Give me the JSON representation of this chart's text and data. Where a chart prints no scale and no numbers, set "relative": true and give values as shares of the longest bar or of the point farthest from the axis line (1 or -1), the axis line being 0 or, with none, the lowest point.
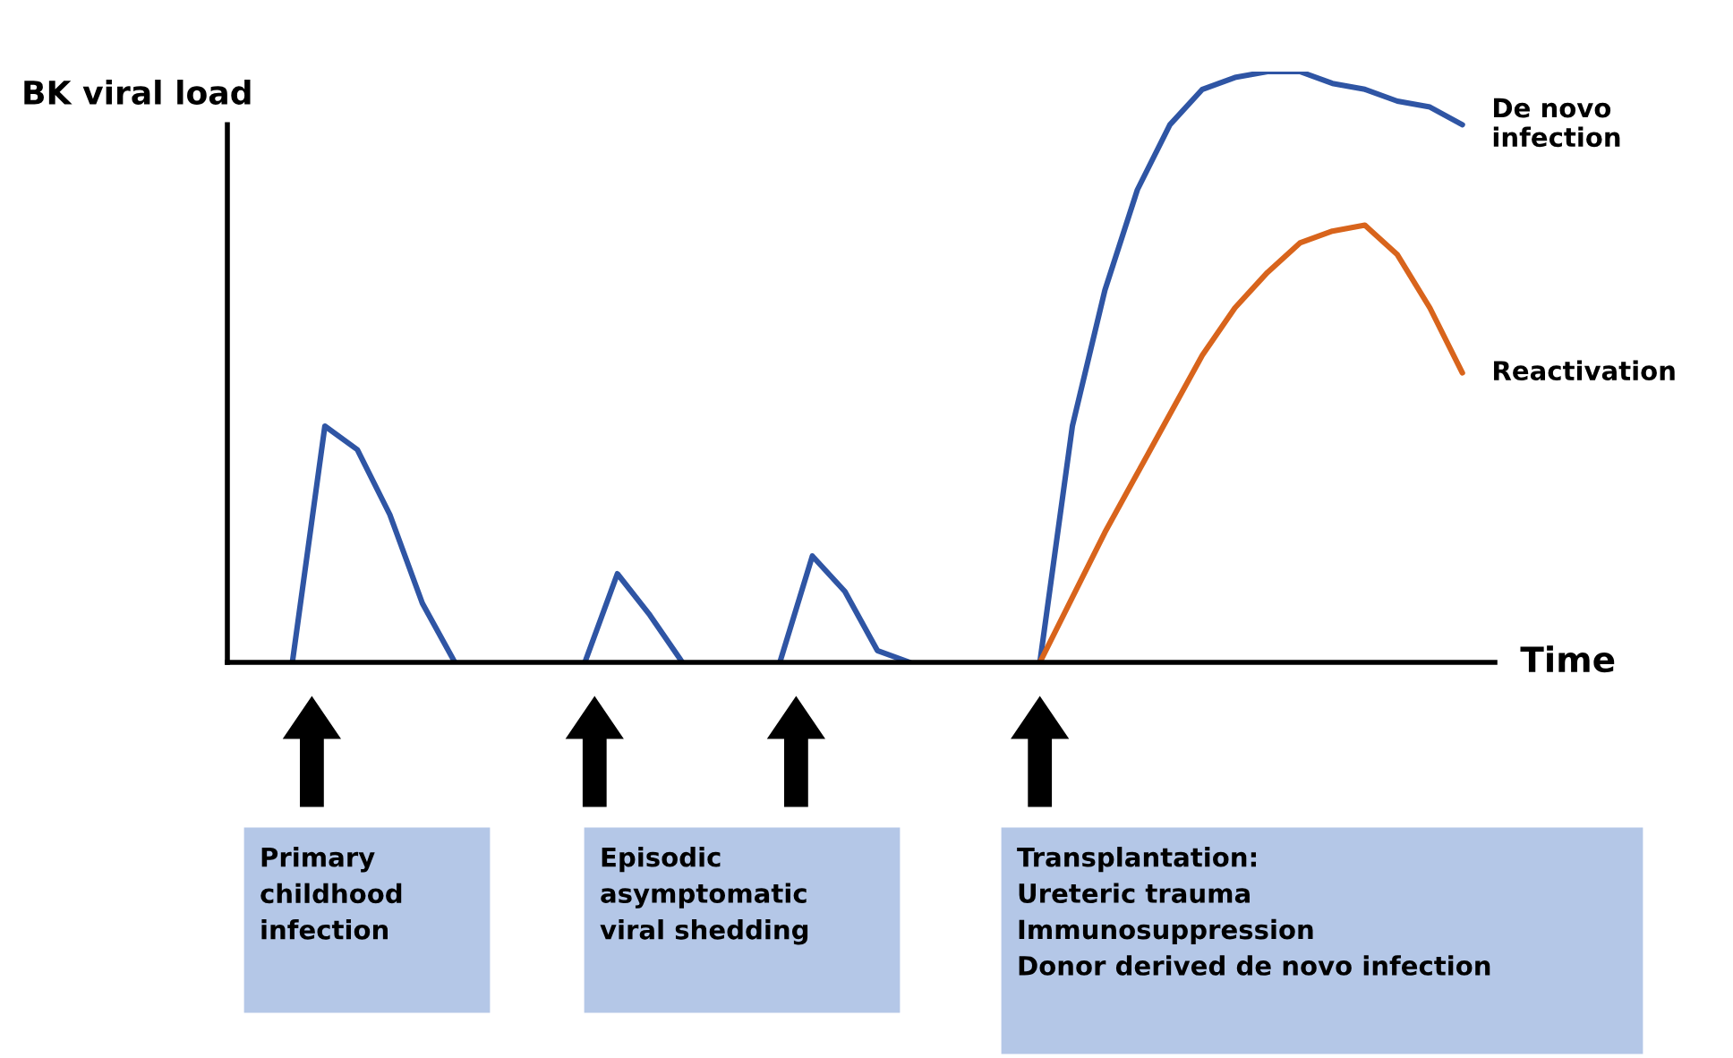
{
  "chart_data": {
    "type": "line",
    "relative": true,
    "ylabel": "BK viral load",
    "xlabel": "Time",
    "tick_labels": false,
    "categories": [
      null,
      null,
      null,
      null,
      null,
      null,
      null,
      null,
      null,
      null,
      null,
      null,
      null,
      null,
      null,
      null,
      null,
      null,
      null,
      null,
      null,
      null,
      null,
      null,
      null,
      null,
      null,
      null,
      null,
      null,
      null,
      null,
      null,
      null,
      null,
      null,
      null,
      null,
      null,
      null
    ],
    "series": [
      {
        "color": "#2f55a4",
        "values": [
          null,
          null,
          0,
          0.4,
          0.36,
          0.25,
          0.1,
          0,
          null,
          null,
          null,
          null,
          null,
          null,
          null,
          null,
          null,
          null,
          null,
          null,
          null,
          null,
          null,
          null,
          null,
          null,
          null,
          null,
          null,
          null,
          null,
          null,
          null,
          null,
          null,
          null,
          null,
          null,
          null,
          null
        ]
      },
      {
        "color": "#2f55a4",
        "values": [
          null,
          null,
          null,
          null,
          null,
          null,
          null,
          null,
          null,
          null,
          null,
          0,
          0.15,
          0.08,
          0,
          null,
          null,
          null,
          null,
          null,
          null,
          null,
          null,
          null,
          null,
          null,
          null,
          null,
          null,
          null,
          null,
          null,
          null,
          null,
          null,
          null,
          null,
          null,
          null,
          null
        ]
      },
      {
        "color": "#2f55a4",
        "values": [
          null,
          null,
          null,
          null,
          null,
          null,
          null,
          null,
          null,
          null,
          null,
          null,
          null,
          null,
          null,
          null,
          null,
          0,
          0.18,
          0.12,
          0.02,
          0,
          null,
          null,
          null,
          null,
          null,
          null,
          null,
          null,
          null,
          null,
          null,
          null,
          null,
          null,
          null,
          null,
          null,
          null
        ]
      },
      {
        "name": "De novo infection",
        "color": "#2f55a4",
        "values": [
          null,
          null,
          null,
          null,
          null,
          null,
          null,
          null,
          null,
          null,
          null,
          null,
          null,
          null,
          null,
          null,
          null,
          null,
          null,
          null,
          null,
          null,
          null,
          null,
          null,
          0,
          0.4,
          0.63,
          0.8,
          0.91,
          0.97,
          0.99,
          1.0,
          1.0,
          0.98,
          0.97,
          0.95,
          0.94,
          0.91,
          null
        ]
      },
      {
        "name": "Reactivation",
        "color": "#d8641c",
        "values": [
          null,
          null,
          null,
          null,
          null,
          null,
          null,
          null,
          null,
          null,
          null,
          null,
          null,
          null,
          null,
          null,
          null,
          null,
          null,
          null,
          null,
          null,
          null,
          null,
          null,
          0,
          0.11,
          0.22,
          0.32,
          0.42,
          0.52,
          0.6,
          0.66,
          0.71,
          0.73,
          0.74,
          0.69,
          0.6,
          0.49,
          null
        ]
      }
    ],
    "annotations": [
      "Primary\nchildhood\ninfection",
      "Episodic\nasymptomatic\nviral shedding",
      "Transplantation:\nUreteric trauma\nImmunosuppression\nDonor derived de novo infection"
    ]
  }
}
